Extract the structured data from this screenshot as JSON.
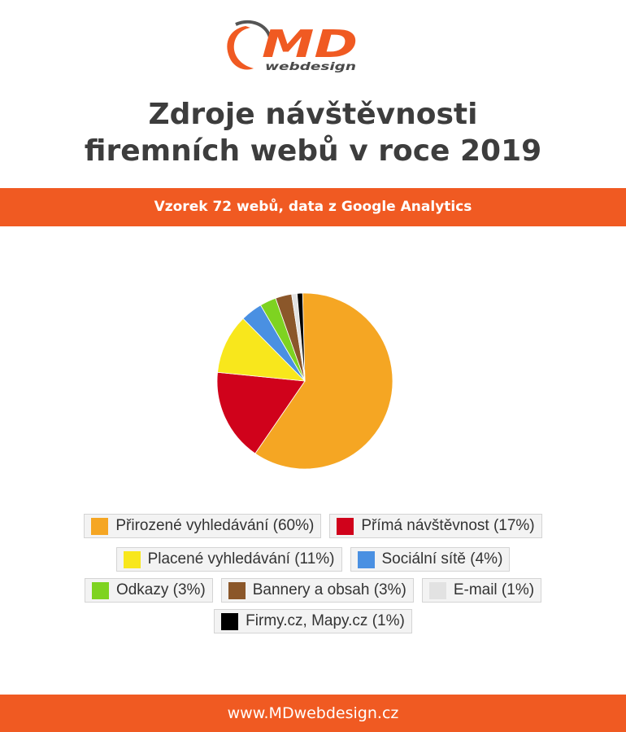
{
  "logo": {
    "main": "MD",
    "sub": "webdesign"
  },
  "title_lines": [
    "Zdroje návštěvnosti",
    "firemních webů v roce 2019"
  ],
  "subtitle": "Vzorek 72 webů, data z Google Analytics",
  "footer": "www.MDwebdesign.cz",
  "colors": {
    "accent": "#f05a22",
    "title": "#3d3d3d"
  },
  "chart_data": {
    "type": "pie",
    "title": "Zdroje návštěvnosti firemních webů v roce 2019",
    "legend_position": "bottom",
    "slices": [
      {
        "label": "Přirozené vyhledávání (60%)",
        "value": 60,
        "color": "#f5a623"
      },
      {
        "label": "Přímá návštěvnost (17%)",
        "value": 17,
        "color": "#d0021b"
      },
      {
        "label": "Placené vyhledávání (11%)",
        "value": 11,
        "color": "#f8e71c"
      },
      {
        "label": "Sociální sítě (4%)",
        "value": 4,
        "color": "#4a90e2"
      },
      {
        "label": "Odkazy (3%)",
        "value": 3,
        "color": "#7ed321"
      },
      {
        "label": "Bannery a obsah (3%)",
        "value": 3,
        "color": "#8b572a"
      },
      {
        "label": "E-mail (1%)",
        "value": 1,
        "color": "#e2e2e2"
      },
      {
        "label": "Firmy.cz, Mapy.cz (1%)",
        "value": 1,
        "color": "#000000"
      }
    ]
  }
}
